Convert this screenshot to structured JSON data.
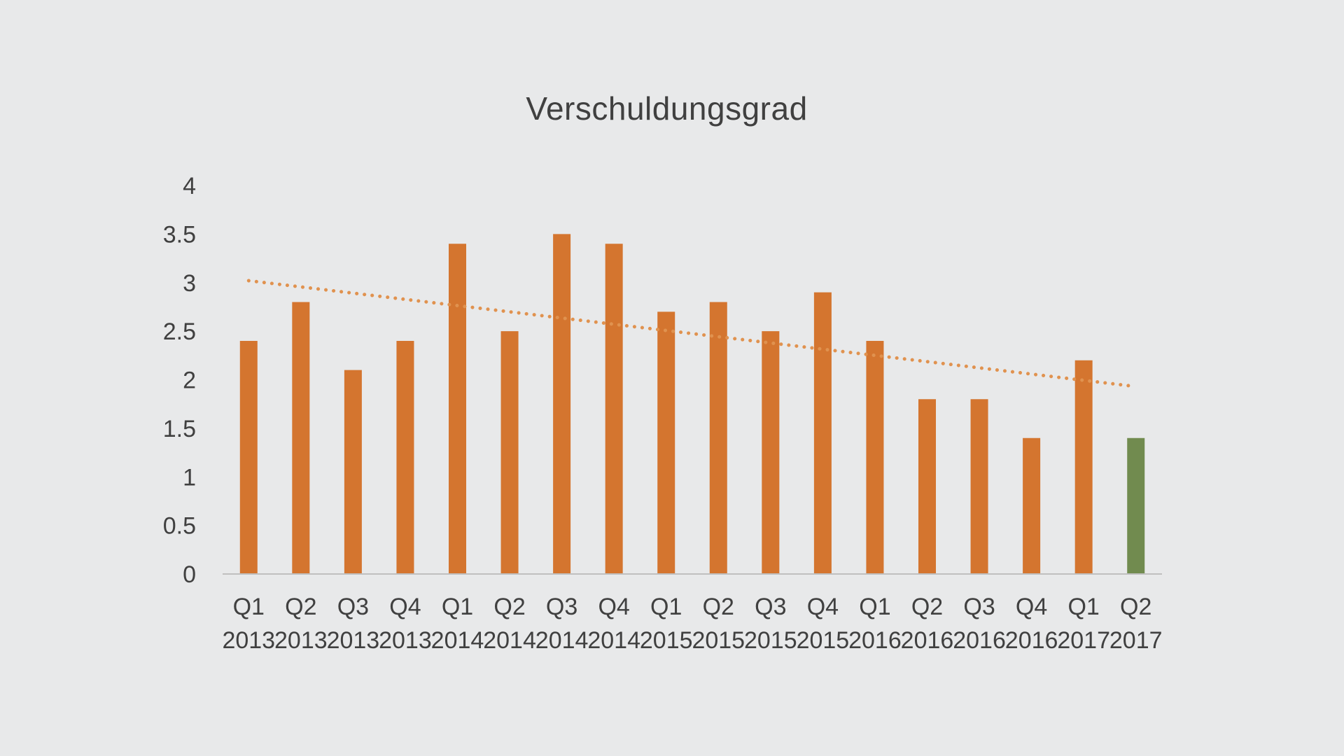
{
  "chart_data": {
    "type": "bar",
    "title": "Verschuldungsgrad",
    "xlabel": "",
    "ylabel": "",
    "ylim": [
      0,
      4
    ],
    "yticks": [
      "0",
      "0.5",
      "1",
      "1.5",
      "2",
      "2.5",
      "3",
      "3.5",
      "4"
    ],
    "categories": [
      "Q1 2013",
      "Q2 2013",
      "Q3 2013",
      "Q4 2013",
      "Q1 2014",
      "Q2 2014",
      "Q3 2014",
      "Q4 2014",
      "Q1 2015",
      "Q2 2015",
      "Q3 2015",
      "Q4 2015",
      "Q1 2016",
      "Q2 2016",
      "Q3 2016",
      "Q4 2016",
      "Q1 2017",
      "Q2 2017"
    ],
    "category_lines": [
      [
        "Q1",
        "2013"
      ],
      [
        "Q2",
        "2013"
      ],
      [
        "Q3",
        "2013"
      ],
      [
        "Q4",
        "2013"
      ],
      [
        "Q1",
        "2014"
      ],
      [
        "Q2",
        "2014"
      ],
      [
        "Q3",
        "2014"
      ],
      [
        "Q4",
        "2014"
      ],
      [
        "Q1",
        "2015"
      ],
      [
        "Q2",
        "2015"
      ],
      [
        "Q3",
        "2015"
      ],
      [
        "Q4",
        "2015"
      ],
      [
        "Q1",
        "2016"
      ],
      [
        "Q2",
        "2016"
      ],
      [
        "Q3",
        "2016"
      ],
      [
        "Q4",
        "2016"
      ],
      [
        "Q1",
        "2017"
      ],
      [
        "Q2",
        "2017"
      ]
    ],
    "values": [
      2.4,
      2.8,
      2.1,
      2.4,
      3.4,
      2.5,
      3.5,
      3.4,
      2.7,
      2.8,
      2.5,
      2.9,
      2.4,
      1.8,
      1.8,
      1.4,
      2.2,
      1.4
    ],
    "bar_colors": [
      "#d4752f",
      "#d4752f",
      "#d4752f",
      "#d4752f",
      "#d4752f",
      "#d4752f",
      "#d4752f",
      "#d4752f",
      "#d4752f",
      "#d4752f",
      "#d4752f",
      "#d4752f",
      "#d4752f",
      "#d4752f",
      "#d4752f",
      "#d4752f",
      "#d4752f",
      "#718b4f"
    ],
    "trendline": {
      "style": "dotted",
      "color": "#e0924f",
      "start_value": 3.02,
      "end_value": 1.93
    },
    "grid": false,
    "legend": "none",
    "axis_color": "#bfbfbf"
  }
}
